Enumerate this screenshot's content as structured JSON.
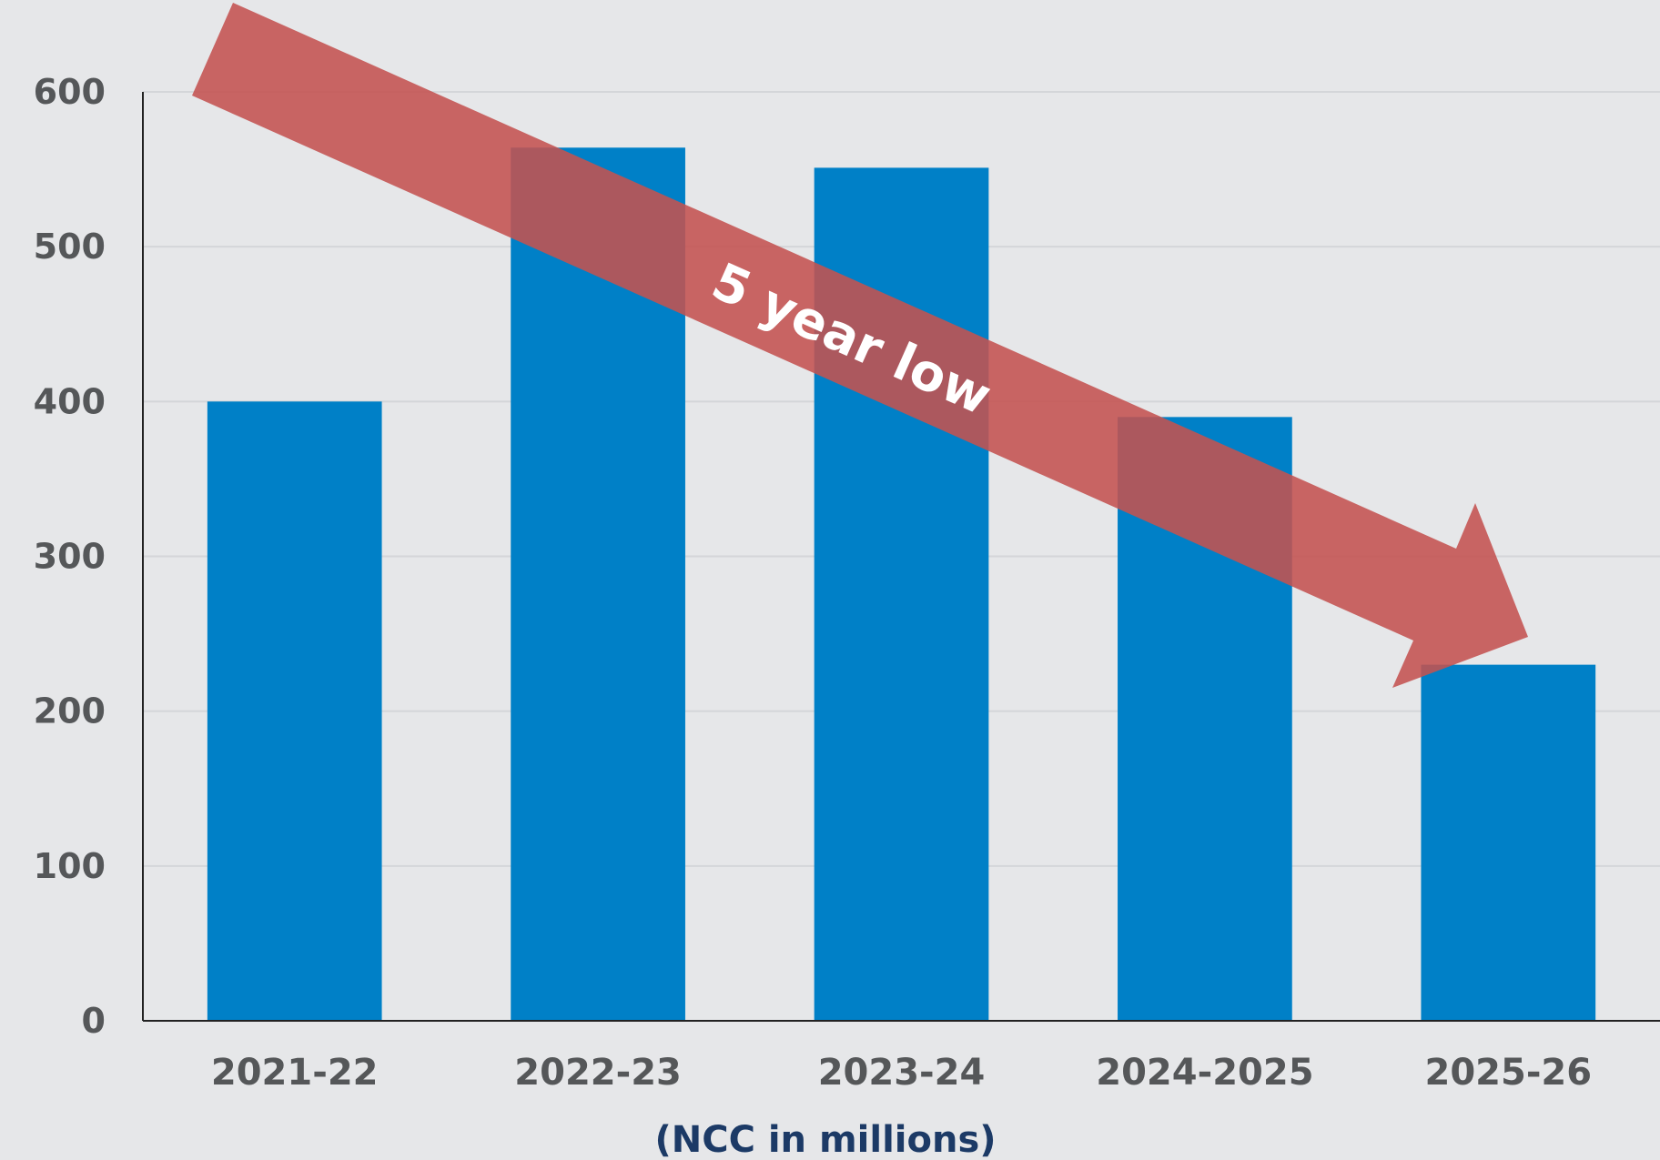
{
  "chart_data": {
    "type": "bar",
    "categories": [
      "2021-22",
      "2022-23",
      "2023-24",
      "2024-2025",
      "2025-26"
    ],
    "values": [
      400,
      564,
      551,
      390,
      230
    ],
    "xlabel": "(NCC in millions)",
    "ylabel": "",
    "ylim": [
      0,
      600
    ],
    "yticks": [
      "0",
      "100",
      "200",
      "300",
      "400",
      "500",
      "600"
    ],
    "grid": true,
    "annotation": {
      "text": "5 year low",
      "type": "arrow",
      "direction": "down-right"
    }
  },
  "colors": {
    "background": "#e6e7e9",
    "bar": "#0080c7",
    "arrow": "#c45250",
    "tick_text": "#555759",
    "xlabel_text": "#1c3a66",
    "gridline": "#d4d6d9",
    "axis": "#222222"
  }
}
